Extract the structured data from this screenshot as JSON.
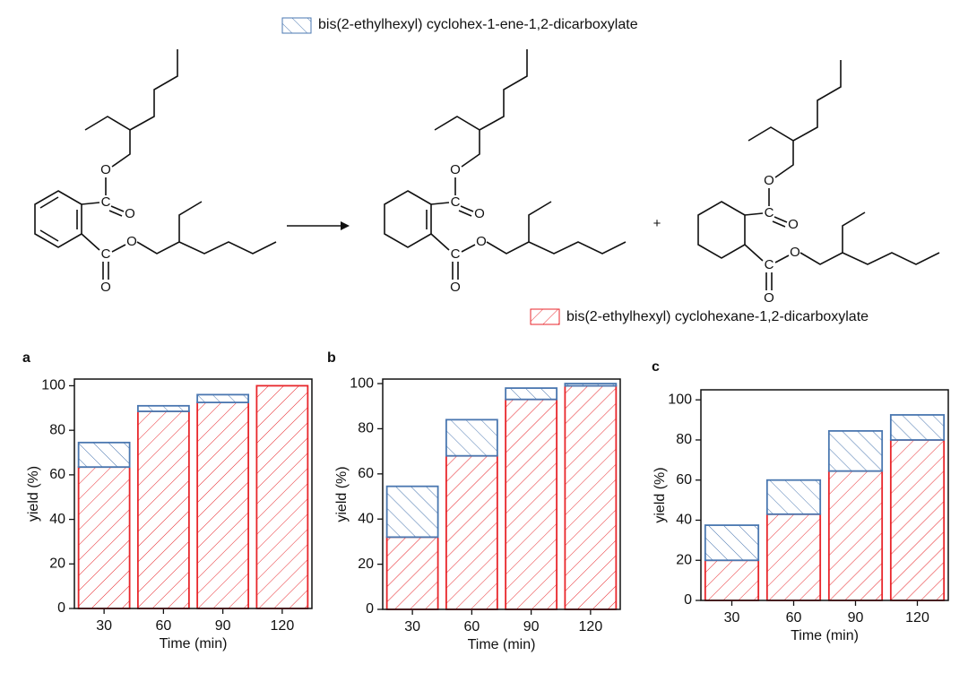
{
  "scheme": {
    "atoms": [
      "O",
      "C",
      "O",
      "C",
      "O",
      "O",
      "O",
      "C",
      "O",
      "C",
      "O",
      "O",
      "O",
      "C",
      "O",
      "C",
      "O",
      "O"
    ],
    "plus": "+"
  },
  "chart_data": [
    {
      "type": "bar",
      "stacked": true,
      "label": "a",
      "ylabel": "yield (%)",
      "xlabel": "Time (min)",
      "categories": [
        "30",
        "60",
        "90",
        "120"
      ],
      "ylim": [
        0,
        103
      ],
      "yticks": [
        0,
        20,
        40,
        60,
        80,
        100
      ],
      "series": [
        {
          "name": "bis(2-ethylhexyl) cyclohexane-1,2-dicarboxylate",
          "color": "#e8262b",
          "values": [
            63.5,
            88.5,
            92.5,
            100
          ]
        },
        {
          "name": "bis(2-ethylhexyl) cyclohex-1-ene-1,2-dicarboxylate",
          "color": "#4a77b0",
          "values": [
            11,
            2.5,
            3.5,
            0
          ]
        }
      ]
    },
    {
      "type": "bar",
      "stacked": true,
      "label": "b",
      "ylabel": "yield (%)",
      "xlabel": "Time (min)",
      "categories": [
        "30",
        "60",
        "90",
        "120"
      ],
      "ylim": [
        0,
        102
      ],
      "yticks": [
        0,
        20,
        40,
        60,
        80,
        100
      ],
      "series": [
        {
          "color": "#e8262b",
          "values": [
            32,
            68,
            93,
            99
          ]
        },
        {
          "color": "#4a77b0",
          "values": [
            22.5,
            16,
            5,
            1
          ]
        }
      ]
    },
    {
      "type": "bar",
      "stacked": true,
      "label": "c",
      "ylabel": "yield (%)",
      "xlabel": "Time (min)",
      "categories": [
        "30",
        "60",
        "90",
        "120"
      ],
      "ylim": [
        0,
        105
      ],
      "yticks": [
        0,
        20,
        40,
        60,
        80,
        100
      ],
      "series": [
        {
          "color": "#e8262b",
          "values": [
            20,
            43,
            64.5,
            80
          ]
        },
        {
          "color": "#4a77b0",
          "values": [
            17.5,
            17,
            20,
            12.5
          ]
        }
      ]
    }
  ]
}
